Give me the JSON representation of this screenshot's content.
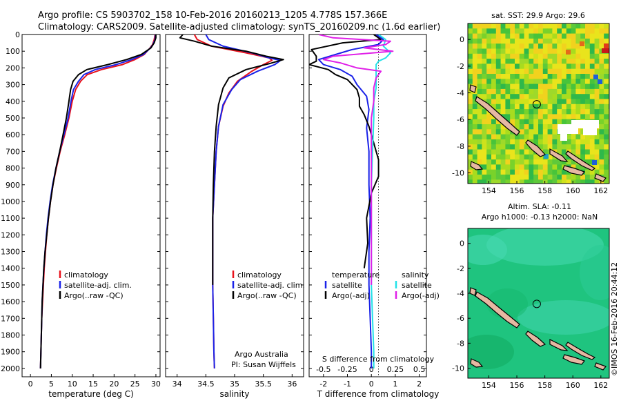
{
  "header": {
    "line1": "Argo profile: CS 5903702_158 10-Feb-2016 20160213_1205 4.778S 157.366E",
    "line2": "Climatology: CARS2009. Satellite-adjusted climatology: synTS_20160209.nc (1.6d earlier)"
  },
  "colors": {
    "climatology": "#e8121c",
    "satellite": "#1a22e8",
    "argo": "#000000",
    "sat_salinity": "#22e2e8",
    "argo_salinity": "#e020e8"
  },
  "chart_data": [
    {
      "type": "line",
      "id": "temperature",
      "xlabel": "temperature (deg C)",
      "ylabel": "",
      "xlim": [
        -2,
        31
      ],
      "ylim": [
        2050,
        0
      ],
      "xticks": [
        0,
        5,
        10,
        15,
        20,
        25,
        30
      ],
      "yticks": [
        0,
        100,
        200,
        300,
        400,
        500,
        600,
        700,
        800,
        900,
        1000,
        1100,
        1200,
        1300,
        1400,
        1500,
        1600,
        1700,
        1800,
        1900,
        2000
      ],
      "legend": [
        "climatology",
        "satellite-adj. clim.",
        "Argo(..raw -QC)"
      ],
      "series": [
        {
          "name": "climatology",
          "color": "#e8121c",
          "points": [
            [
              29.8,
              0
            ],
            [
              29.6,
              30
            ],
            [
              29.2,
              60
            ],
            [
              28.6,
              80
            ],
            [
              27.2,
              120
            ],
            [
              25,
              150
            ],
            [
              22,
              180
            ],
            [
              17,
              210
            ],
            [
              13.6,
              240
            ],
            [
              12,
              280
            ],
            [
              10.8,
              330
            ],
            [
              10,
              400
            ],
            [
              9.2,
              500
            ],
            [
              8.2,
              600
            ],
            [
              7.1,
              700
            ],
            [
              6.2,
              800
            ],
            [
              5.4,
              900
            ],
            [
              4.8,
              1000
            ],
            [
              4.3,
              1100
            ],
            [
              3.9,
              1200
            ],
            [
              3.6,
              1300
            ],
            [
              3.3,
              1400
            ],
            [
              3.1,
              1500
            ],
            [
              2.9,
              1600
            ],
            [
              2.7,
              1700
            ],
            [
              2.6,
              1800
            ],
            [
              2.5,
              1900
            ],
            [
              2.4,
              2000
            ]
          ]
        },
        {
          "name": "satellite-adj. clim.",
          "color": "#1a22e8",
          "points": [
            [
              29.9,
              0
            ],
            [
              29.8,
              30
            ],
            [
              29.3,
              60
            ],
            [
              28.7,
              80
            ],
            [
              27,
              120
            ],
            [
              24.2,
              150
            ],
            [
              20.5,
              180
            ],
            [
              15.5,
              210
            ],
            [
              12.8,
              240
            ],
            [
              11.5,
              280
            ],
            [
              10.3,
              330
            ],
            [
              9.7,
              400
            ],
            [
              9,
              500
            ],
            [
              8,
              600
            ],
            [
              7,
              700
            ],
            [
              6.1,
              800
            ],
            [
              5.3,
              900
            ],
            [
              4.7,
              1000
            ],
            [
              4.2,
              1100
            ],
            [
              3.8,
              1200
            ],
            [
              3.5,
              1300
            ],
            [
              3.2,
              1400
            ],
            [
              3,
              1500
            ],
            [
              2.8,
              1600
            ],
            [
              2.7,
              1700
            ],
            [
              2.6,
              1800
            ],
            [
              2.5,
              1900
            ],
            [
              2.4,
              2000
            ]
          ]
        },
        {
          "name": "Argo(..raw -QC)",
          "color": "#000000",
          "points": [
            [
              30,
              0
            ],
            [
              30,
              20
            ],
            [
              29.6,
              50
            ],
            [
              28.8,
              80
            ],
            [
              26.5,
              120
            ],
            [
              23,
              150
            ],
            [
              18.5,
              180
            ],
            [
              13.5,
              210
            ],
            [
              11.5,
              240
            ],
            [
              10.2,
              280
            ],
            [
              9.6,
              330
            ],
            [
              9.2,
              400
            ],
            [
              8.6,
              500
            ],
            [
              7.8,
              600
            ],
            [
              7,
              700
            ],
            [
              6.1,
              800
            ],
            [
              5.4,
              900
            ],
            [
              4.8,
              1000
            ],
            [
              4.3,
              1100
            ],
            [
              3.9,
              1200
            ],
            [
              3.5,
              1300
            ],
            [
              3.2,
              1400
            ],
            [
              3,
              1500
            ],
            [
              2.8,
              1600
            ],
            [
              2.7,
              1700
            ],
            [
              2.6,
              1800
            ],
            [
              2.5,
              1900
            ],
            [
              2.4,
              2000
            ]
          ]
        }
      ]
    },
    {
      "type": "line",
      "id": "salinity",
      "xlabel": "salinity",
      "xlim": [
        33.8,
        36.2
      ],
      "ylim": [
        2050,
        0
      ],
      "xticks": [
        34,
        34.5,
        35,
        35.5,
        36
      ],
      "legend": [
        "climatology",
        "satellite-adj. clim.",
        "Argo(..raw -QC)"
      ],
      "annotations": [
        "Argo Australia",
        "PI: Susan Wijffels"
      ],
      "series": [
        {
          "name": "climatology",
          "color": "#e8121c",
          "points": [
            [
              34.3,
              0
            ],
            [
              34.35,
              30
            ],
            [
              34.6,
              70
            ],
            [
              35.2,
              110
            ],
            [
              35.6,
              140
            ],
            [
              35.65,
              155
            ],
            [
              35.5,
              180
            ],
            [
              35.3,
              220
            ],
            [
              35.05,
              280
            ],
            [
              34.9,
              350
            ],
            [
              34.8,
              430
            ],
            [
              34.72,
              550
            ],
            [
              34.68,
              700
            ],
            [
              34.65,
              900
            ],
            [
              34.62,
              1100
            ],
            [
              34.62,
              1300
            ],
            [
              34.62,
              1500
            ],
            [
              34.63,
              1700
            ],
            [
              34.64,
              1900
            ],
            [
              34.65,
              2000
            ]
          ]
        },
        {
          "name": "satellite-adj. clim.",
          "color": "#1a22e8",
          "points": [
            [
              34.5,
              0
            ],
            [
              34.55,
              30
            ],
            [
              34.8,
              70
            ],
            [
              35.3,
              110
            ],
            [
              35.6,
              140
            ],
            [
              35.8,
              155
            ],
            [
              35.7,
              180
            ],
            [
              35.4,
              220
            ],
            [
              35.1,
              270
            ],
            [
              34.95,
              330
            ],
            [
              34.8,
              420
            ],
            [
              34.72,
              550
            ],
            [
              34.68,
              700
            ],
            [
              34.65,
              900
            ],
            [
              34.62,
              1100
            ],
            [
              34.62,
              1300
            ],
            [
              34.62,
              1500
            ],
            [
              34.63,
              1700
            ],
            [
              34.64,
              1900
            ],
            [
              34.65,
              2000
            ]
          ]
        },
        {
          "name": "Argo(..raw -QC)",
          "color": "#000000",
          "points": [
            [
              34.1,
              0
            ],
            [
              34.05,
              20
            ],
            [
              34.3,
              40
            ],
            [
              34.6,
              70
            ],
            [
              35.2,
              100
            ],
            [
              35.55,
              130
            ],
            [
              35.85,
              150
            ],
            [
              35.6,
              175
            ],
            [
              35.2,
              210
            ],
            [
              34.9,
              260
            ],
            [
              34.8,
              320
            ],
            [
              34.72,
              420
            ],
            [
              34.68,
              550
            ],
            [
              34.65,
              700
            ],
            [
              34.63,
              900
            ],
            [
              34.62,
              1100
            ],
            [
              34.62,
              1300
            ],
            [
              34.62,
              1500
            ]
          ]
        }
      ]
    },
    {
      "type": "line",
      "id": "differences",
      "xlabel": "T difference from climatology",
      "xlabel_top": "S difference from climatology",
      "xlim": [
        -2.6,
        2.3
      ],
      "ylim": [
        2050,
        0
      ],
      "xticks": [
        -2,
        -1,
        0,
        1,
        2
      ],
      "s_ticks": [
        "-0.5",
        "-0.25",
        "0",
        "0.25",
        "0.5"
      ],
      "s_tick_t_equiv": [
        -2,
        -1,
        0,
        1,
        2
      ],
      "legend_temperature_title": "temperature",
      "legend_temperature": [
        "satellite",
        "Argo(-adj)"
      ],
      "legend_salinity_title": "salinity",
      "legend_salinity": [
        "satellite",
        "Argo(-adj)"
      ],
      "series": [
        {
          "name": "temperature satellite",
          "color": "#1a22e8",
          "points": [
            [
              0.2,
              0
            ],
            [
              0.5,
              30
            ],
            [
              0.3,
              60
            ],
            [
              -0.8,
              90
            ],
            [
              -1.5,
              120
            ],
            [
              -2.2,
              150
            ],
            [
              -2,
              180
            ],
            [
              -1.3,
              210
            ],
            [
              -0.8,
              250
            ],
            [
              -0.6,
              300
            ],
            [
              -0.2,
              370
            ],
            [
              -0.1,
              450
            ],
            [
              -0.2,
              560
            ],
            [
              -0.1,
              700
            ],
            [
              -0.1,
              900
            ],
            [
              -0.05,
              1100
            ],
            [
              -0.1,
              1300
            ],
            [
              -0.1,
              1500
            ],
            [
              -0.05,
              1700
            ],
            [
              0,
              1900
            ],
            [
              0,
              2000
            ]
          ]
        },
        {
          "name": "temperature Argo(-adj)",
          "color": "#000000",
          "points": [
            [
              0.1,
              0
            ],
            [
              0.4,
              30
            ],
            [
              -1.2,
              50
            ],
            [
              -2.5,
              90
            ],
            [
              -2.3,
              130
            ],
            [
              -2.3,
              160
            ],
            [
              -2.6,
              180
            ],
            [
              -1.8,
              210
            ],
            [
              -1.5,
              240
            ],
            [
              -1,
              270
            ],
            [
              -0.6,
              330
            ],
            [
              -0.5,
              380
            ],
            [
              -0.5,
              430
            ],
            [
              -0.3,
              480
            ],
            [
              -0.1,
              550
            ],
            [
              0.1,
              650
            ],
            [
              0.3,
              750
            ],
            [
              0.3,
              850
            ],
            [
              0,
              950
            ],
            [
              -0.2,
              1100
            ],
            [
              -0.15,
              1250
            ],
            [
              -0.3,
              1400
            ]
          ]
        },
        {
          "name": "salinity satellite",
          "color": "#22e2e8",
          "points": [
            [
              0.3,
              0
            ],
            [
              0.6,
              30
            ],
            [
              0.5,
              70
            ],
            [
              0.8,
              110
            ],
            [
              0.6,
              140
            ],
            [
              0.3,
              160
            ],
            [
              0.2,
              180
            ],
            [
              0.2,
              210
            ],
            [
              0.2,
              260
            ],
            [
              0.2,
              320
            ],
            [
              0.1,
              400
            ],
            [
              0.1,
              500
            ],
            [
              0.05,
              700
            ],
            [
              0,
              900
            ],
            [
              0,
              1100
            ],
            [
              0,
              1300
            ],
            [
              0,
              1500
            ],
            [
              0.05,
              1700
            ],
            [
              0.1,
              1900
            ],
            [
              0.1,
              2000
            ]
          ]
        },
        {
          "name": "salinity Argo(-adj)",
          "color": "#e020e8",
          "points": [
            [
              -2.2,
              0
            ],
            [
              -1.6,
              20
            ],
            [
              0.8,
              40
            ],
            [
              0.6,
              60
            ],
            [
              -0.3,
              80
            ],
            [
              0.9,
              100
            ],
            [
              -1.6,
              130
            ],
            [
              -2,
              150
            ],
            [
              -1.3,
              170
            ],
            [
              -0.6,
              200
            ],
            [
              0.4,
              220
            ],
            [
              0.2,
              260
            ],
            [
              0.1,
              320
            ],
            [
              0.1,
              400
            ],
            [
              0,
              500
            ],
            [
              0,
              700
            ],
            [
              0,
              900
            ],
            [
              0,
              1100
            ],
            [
              0,
              1300
            ],
            [
              0,
              1500
            ]
          ]
        }
      ]
    }
  ],
  "maps": {
    "sst": {
      "title": "sat. SST: 29.9 Argo: 29.6",
      "xticks": [
        "154",
        "156",
        "158",
        "160",
        "162"
      ],
      "yticks": [
        "0",
        "-2",
        "-4",
        "-6",
        "-8",
        "-10"
      ]
    },
    "sla": {
      "title_line1": "Altim. SLA: -0.11",
      "title_line2": "Argo h1000: -0.13 h2000: NaN",
      "xticks": [
        "154",
        "156",
        "158",
        "160",
        "162"
      ],
      "yticks": [
        "0",
        "-2",
        "-4",
        "-6",
        "-8",
        "-10"
      ]
    },
    "float_position": {
      "lon": 157.366,
      "lat": -4.778
    },
    "lon_range": [
      152.5,
      162.6
    ],
    "lat_range": [
      -10.8,
      1.2
    ]
  },
  "footer": {
    "watermark": "©IMOS 16-Feb-2016 20:44:12"
  }
}
